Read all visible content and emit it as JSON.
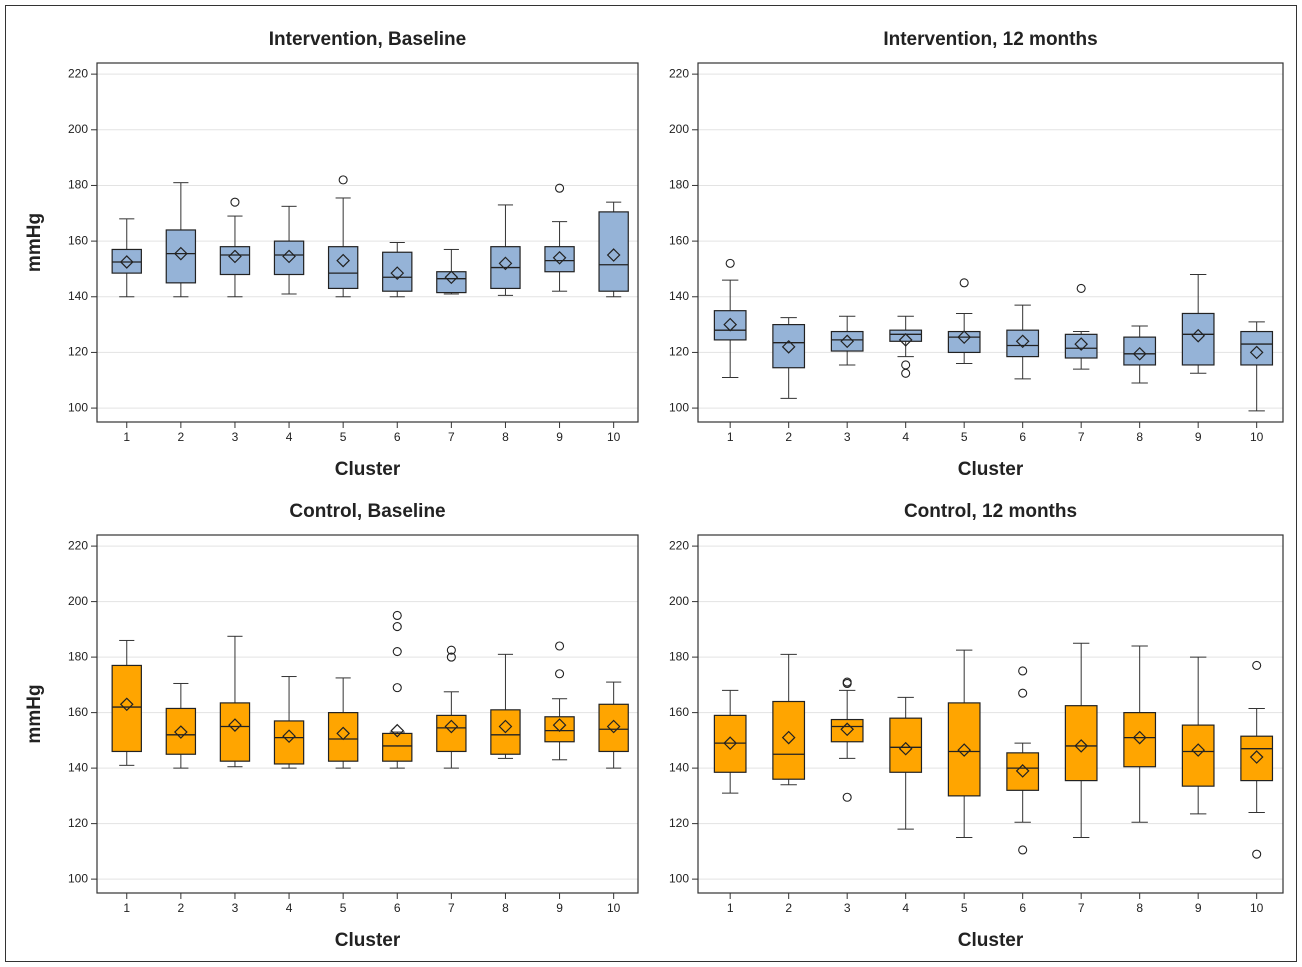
{
  "chart_data": [
    {
      "type": "box",
      "title": "Intervention, Baseline",
      "xlabel": "Cluster",
      "ylabel": "mmHg",
      "color": "#95b3d7",
      "categories": [
        "1",
        "2",
        "3",
        "4",
        "5",
        "6",
        "7",
        "8",
        "9",
        "10"
      ],
      "min": [
        140,
        140,
        140,
        141,
        140,
        140,
        141,
        140.5,
        142,
        140
      ],
      "q1": [
        148.5,
        145,
        148,
        148,
        143,
        142,
        141.5,
        143,
        149,
        142
      ],
      "median": [
        152.5,
        155.5,
        155,
        155,
        148.5,
        147,
        146.5,
        150.5,
        153,
        151.5
      ],
      "q3": [
        157,
        164,
        158,
        160,
        158,
        156,
        149,
        158,
        158,
        170.5
      ],
      "max": [
        168,
        181,
        169,
        172.5,
        175.5,
        159.5,
        157,
        173,
        167,
        174
      ],
      "mean": [
        152.5,
        155.5,
        154.5,
        154.5,
        153,
        148.5,
        147,
        152,
        154,
        155
      ],
      "outliers": [
        [],
        [],
        [
          174
        ],
        [],
        [
          182
        ],
        [],
        [],
        [],
        [
          179
        ],
        []
      ],
      "ylim": [
        95,
        224
      ],
      "yticks": [
        100,
        120,
        140,
        160,
        180,
        200,
        220
      ],
      "grid": true
    },
    {
      "type": "box",
      "title": "Intervention, 12 months",
      "xlabel": "Cluster",
      "color": "#95b3d7",
      "categories": [
        "1",
        "2",
        "3",
        "4",
        "5",
        "6",
        "7",
        "8",
        "9",
        "10"
      ],
      "min": [
        111,
        103.5,
        115.5,
        118.5,
        116,
        110.5,
        114,
        109,
        112.5,
        99
      ],
      "q1": [
        124.5,
        114.5,
        120.5,
        124,
        120,
        118.5,
        118,
        115.5,
        115.5,
        115.5
      ],
      "median": [
        128,
        123.5,
        124.5,
        126.5,
        125.5,
        122.5,
        121.5,
        119.5,
        126.5,
        123
      ],
      "q3": [
        135,
        130,
        127.5,
        128,
        127.5,
        128,
        126.5,
        125.5,
        134,
        127.5
      ],
      "max": [
        146,
        132.5,
        133,
        133,
        134,
        137,
        127.5,
        129.5,
        148,
        131
      ],
      "mean": [
        130,
        122,
        124,
        124.5,
        125.5,
        124,
        123,
        119.5,
        126,
        120
      ],
      "outliers": [
        [
          152
        ],
        [],
        [],
        [
          112.5,
          115.5
        ],
        [
          145
        ],
        [],
        [
          143
        ],
        [],
        [],
        []
      ],
      "ylim": [
        95,
        224
      ],
      "yticks": [
        100,
        120,
        140,
        160,
        180,
        200,
        220
      ],
      "grid": true
    },
    {
      "type": "box",
      "title": "Control, Baseline",
      "xlabel": "Cluster",
      "ylabel": "mmHg",
      "color": "#ffa500",
      "categories": [
        "1",
        "2",
        "3",
        "4",
        "5",
        "6",
        "7",
        "8",
        "9",
        "10"
      ],
      "min": [
        141,
        140,
        140.5,
        140,
        140,
        140,
        140,
        143.5,
        143,
        140
      ],
      "q1": [
        146,
        145,
        142.5,
        141.5,
        142.5,
        142.5,
        146,
        145,
        149.5,
        146
      ],
      "median": [
        162,
        152,
        155,
        151,
        150.5,
        148,
        154.5,
        152,
        153.5,
        154
      ],
      "q3": [
        177,
        161.5,
        163.5,
        157,
        160,
        152.5,
        159,
        161,
        158.5,
        163
      ],
      "max": [
        186,
        170.5,
        187.5,
        173,
        172.5,
        153,
        167.5,
        181,
        165,
        171
      ],
      "mean": [
        163,
        153,
        155.5,
        151.5,
        152.5,
        153.5,
        155,
        155,
        155.5,
        155
      ],
      "outliers": [
        [],
        [],
        [],
        [],
        [],
        [
          169,
          182,
          191,
          195
        ],
        [
          180,
          182.5
        ],
        [],
        [
          174,
          184
        ],
        []
      ],
      "ylim": [
        95,
        224
      ],
      "yticks": [
        100,
        120,
        140,
        160,
        180,
        200,
        220
      ],
      "grid": true
    },
    {
      "type": "box",
      "title": "Control, 12 months",
      "xlabel": "Cluster",
      "color": "#ffa500",
      "categories": [
        "1",
        "2",
        "3",
        "4",
        "5",
        "6",
        "7",
        "8",
        "9",
        "10"
      ],
      "min": [
        131,
        134,
        143.5,
        118,
        115,
        120.5,
        115,
        120.5,
        123.5,
        124
      ],
      "q1": [
        138.5,
        136,
        149.5,
        138.5,
        130,
        132,
        135.5,
        140.5,
        133.5,
        135.5
      ],
      "median": [
        149,
        145,
        155,
        147.5,
        146,
        140,
        148,
        151,
        146,
        147
      ],
      "q3": [
        159,
        164,
        157.5,
        158,
        163.5,
        145.5,
        162.5,
        160,
        155.5,
        151.5
      ],
      "max": [
        168,
        181,
        168,
        165.5,
        182.5,
        149,
        185,
        184,
        180,
        161.5
      ],
      "mean": [
        149,
        151,
        154,
        147,
        146.5,
        139,
        148,
        151,
        146.5,
        144
      ],
      "outliers": [
        [],
        [],
        [
          129.5,
          170.5,
          171
        ],
        [],
        [],
        [
          110.5,
          167,
          175
        ],
        [],
        [],
        [],
        [
          109,
          177
        ]
      ],
      "ylim": [
        95,
        224
      ],
      "yticks": [
        100,
        120,
        140,
        160,
        180,
        200,
        220
      ],
      "grid": true
    }
  ]
}
